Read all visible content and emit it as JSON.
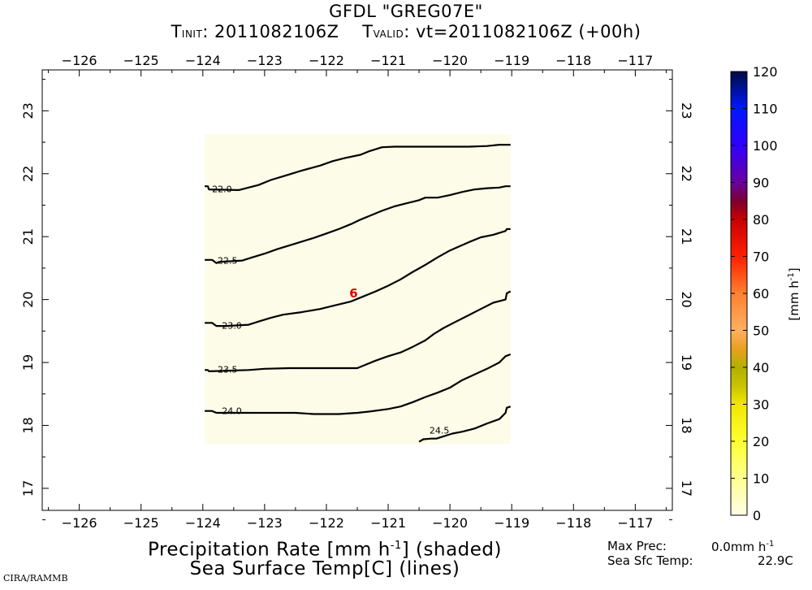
{
  "header": {
    "model": "GFDL",
    "storm": "\"GREG07E\"",
    "t_init_prefix": "T",
    "t_init_sub": "INIT",
    "t_init_value": ": 2011082106Z",
    "t_valid_prefix": "T",
    "t_valid_sub": "VALID",
    "t_valid_value": ": vt=2011082106Z (+00h)"
  },
  "footer": {
    "line1_a": "Precipitation Rate [mm h",
    "line1_sup": "-1",
    "line1_b": "] (shaded)",
    "line2": "Sea Surface Temp[C] (lines)",
    "credit": "CIRA/RAMMB"
  },
  "stats": {
    "max_prec_label": "Max Prec:",
    "max_prec_value": "0.0mm h",
    "max_prec_sup": "-1",
    "sst_label": "Sea Sfc Temp:",
    "sst_value": "22.9C"
  },
  "colorbar": {
    "unit_a": "[mm h",
    "unit_sup": "-1",
    "unit_b": "]",
    "ticks": [
      0,
      10,
      20,
      30,
      40,
      50,
      60,
      70,
      80,
      90,
      100,
      110,
      120
    ],
    "tick_labels": [
      "0",
      "10",
      "20",
      "30",
      "40",
      "50",
      "60",
      "70",
      "80",
      "90",
      "100",
      "110",
      "120"
    ],
    "colors": [
      {
        "v": 0,
        "c": "#fffde8"
      },
      {
        "v": 10,
        "c": "#ffff90"
      },
      {
        "v": 20,
        "c": "#ffff30"
      },
      {
        "v": 30,
        "c": "#f2e600"
      },
      {
        "v": 35,
        "c": "#c8c300"
      },
      {
        "v": 40,
        "c": "#b2b000"
      },
      {
        "v": 45,
        "c": "#e8a020"
      },
      {
        "v": 50,
        "c": "#ffb060"
      },
      {
        "v": 60,
        "c": "#ff8030"
      },
      {
        "v": 70,
        "c": "#ff2000"
      },
      {
        "v": 80,
        "c": "#c80000"
      },
      {
        "v": 85,
        "c": "#7a0030"
      },
      {
        "v": 90,
        "c": "#6a00a0"
      },
      {
        "v": 100,
        "c": "#3000ff"
      },
      {
        "v": 110,
        "c": "#0018ff"
      },
      {
        "v": 120,
        "c": "#000a40"
      }
    ]
  },
  "chart_data": {
    "type": "contour",
    "title": "GFDL \"GREG07E\"",
    "xlim": [
      -126.6,
      -116.4
    ],
    "ylim": [
      16.65,
      23.65
    ],
    "x_ticks": [
      -126,
      -125,
      -124,
      -123,
      -122,
      -121,
      -120,
      -119,
      -118,
      -117
    ],
    "x_tick_labels": [
      "−126",
      "−125",
      "−124",
      "−123",
      "−122",
      "−121",
      "−120",
      "−119",
      "−118",
      "−117"
    ],
    "y_ticks": [
      17,
      18,
      19,
      20,
      21,
      22,
      23
    ],
    "y_tick_labels": [
      "17",
      "18",
      "19",
      "20",
      "21",
      "22",
      "23"
    ],
    "xlabel": "Precipitation Rate [mm h-1] (shaded)",
    "ylabel": "Sea Surface Temp[C] (lines)",
    "shaded_domain": {
      "lon": [
        -123.97,
        -119.02
      ],
      "lat": [
        17.7,
        22.62
      ],
      "value_mm_h": 0.0,
      "color": "#fdfce8"
    },
    "storm_marker": {
      "lon": -121.56,
      "lat": 20.1,
      "symbol": "6",
      "color": "#e00000"
    },
    "contours": [
      {
        "level": 22.0,
        "label": "22.0",
        "label_at": [
          -123.69,
          21.76
        ],
        "points": [
          [
            -123.97,
            21.8
          ],
          [
            -123.92,
            21.8
          ],
          [
            -123.9,
            21.75
          ],
          [
            -123.42,
            21.74
          ],
          [
            -123.3,
            21.77
          ],
          [
            -123.1,
            21.82
          ],
          [
            -122.9,
            21.9
          ],
          [
            -122.7,
            21.96
          ],
          [
            -122.4,
            22.05
          ],
          [
            -122.1,
            22.13
          ],
          [
            -121.9,
            22.2
          ],
          [
            -121.7,
            22.25
          ],
          [
            -121.45,
            22.3
          ],
          [
            -121.3,
            22.36
          ],
          [
            -121.1,
            22.42
          ],
          [
            -120.9,
            22.43
          ],
          [
            -120.6,
            22.43
          ],
          [
            -120.3,
            22.43
          ],
          [
            -120.0,
            22.43
          ],
          [
            -119.7,
            22.43
          ],
          [
            -119.4,
            22.44
          ],
          [
            -119.2,
            22.46
          ],
          [
            -119.02,
            22.46
          ]
        ]
      },
      {
        "level": 22.5,
        "label": "22.5",
        "label_at": [
          -123.6,
          20.62
        ],
        "points": [
          [
            -123.97,
            20.63
          ],
          [
            -123.85,
            20.63
          ],
          [
            -123.78,
            20.58
          ],
          [
            -123.73,
            20.6
          ],
          [
            -123.36,
            20.62
          ],
          [
            -123.2,
            20.67
          ],
          [
            -123.0,
            20.73
          ],
          [
            -122.8,
            20.8
          ],
          [
            -122.5,
            20.89
          ],
          [
            -122.2,
            20.98
          ],
          [
            -122.0,
            21.05
          ],
          [
            -121.8,
            21.12
          ],
          [
            -121.6,
            21.2
          ],
          [
            -121.45,
            21.27
          ],
          [
            -121.3,
            21.33
          ],
          [
            -121.1,
            21.41
          ],
          [
            -120.9,
            21.48
          ],
          [
            -120.7,
            21.53
          ],
          [
            -120.5,
            21.58
          ],
          [
            -120.4,
            21.62
          ],
          [
            -120.2,
            21.62
          ],
          [
            -120.0,
            21.66
          ],
          [
            -119.8,
            21.71
          ],
          [
            -119.6,
            21.75
          ],
          [
            -119.4,
            21.77
          ],
          [
            -119.2,
            21.78
          ],
          [
            -119.1,
            21.8
          ],
          [
            -119.02,
            21.8
          ]
        ]
      },
      {
        "level": 23.0,
        "label": "23.0",
        "label_at": [
          -123.53,
          19.59
        ],
        "points": [
          [
            -123.97,
            19.63
          ],
          [
            -123.85,
            19.63
          ],
          [
            -123.78,
            19.58
          ],
          [
            -123.62,
            19.58
          ],
          [
            -123.26,
            19.6
          ],
          [
            -123.1,
            19.65
          ],
          [
            -122.9,
            19.71
          ],
          [
            -122.7,
            19.76
          ],
          [
            -122.4,
            19.8
          ],
          [
            -122.1,
            19.85
          ],
          [
            -121.9,
            19.9
          ],
          [
            -121.6,
            19.97
          ],
          [
            -121.4,
            20.05
          ],
          [
            -121.2,
            20.13
          ],
          [
            -121.0,
            20.22
          ],
          [
            -120.8,
            20.32
          ],
          [
            -120.6,
            20.44
          ],
          [
            -120.4,
            20.55
          ],
          [
            -120.2,
            20.67
          ],
          [
            -120.0,
            20.78
          ],
          [
            -119.7,
            20.91
          ],
          [
            -119.5,
            20.99
          ],
          [
            -119.3,
            21.03
          ],
          [
            -119.1,
            21.09
          ],
          [
            -119.08,
            21.12
          ],
          [
            -119.02,
            21.12
          ]
        ]
      },
      {
        "level": 23.5,
        "label": "23.5",
        "label_at": [
          -123.6,
          18.89
        ],
        "points": [
          [
            -123.97,
            18.88
          ],
          [
            -123.92,
            18.88
          ],
          [
            -123.9,
            18.86
          ],
          [
            -123.26,
            18.88
          ],
          [
            -123.0,
            18.9
          ],
          [
            -122.6,
            18.91
          ],
          [
            -122.2,
            18.91
          ],
          [
            -121.8,
            18.91
          ],
          [
            -121.5,
            18.91
          ],
          [
            -121.4,
            18.95
          ],
          [
            -121.2,
            19.03
          ],
          [
            -121.0,
            19.1
          ],
          [
            -120.8,
            19.16
          ],
          [
            -120.6,
            19.25
          ],
          [
            -120.4,
            19.35
          ],
          [
            -120.25,
            19.46
          ],
          [
            -120.1,
            19.55
          ],
          [
            -119.9,
            19.65
          ],
          [
            -119.7,
            19.75
          ],
          [
            -119.5,
            19.85
          ],
          [
            -119.3,
            19.95
          ],
          [
            -119.1,
            20.0
          ],
          [
            -119.08,
            20.1
          ],
          [
            -119.02,
            20.13
          ]
        ]
      },
      {
        "level": 24.0,
        "label": "24.0",
        "label_at": [
          -123.53,
          18.23
        ],
        "points": [
          [
            -123.97,
            18.23
          ],
          [
            -123.85,
            18.23
          ],
          [
            -123.78,
            18.2
          ],
          [
            -123.26,
            18.2
          ],
          [
            -123.0,
            18.2
          ],
          [
            -122.5,
            18.2
          ],
          [
            -122.2,
            18.18
          ],
          [
            -121.8,
            18.18
          ],
          [
            -121.5,
            18.2
          ],
          [
            -121.3,
            18.22
          ],
          [
            -121.0,
            18.26
          ],
          [
            -120.8,
            18.3
          ],
          [
            -120.6,
            18.37
          ],
          [
            -120.4,
            18.45
          ],
          [
            -120.2,
            18.52
          ],
          [
            -120.0,
            18.6
          ],
          [
            -119.8,
            18.72
          ],
          [
            -119.6,
            18.81
          ],
          [
            -119.4,
            18.9
          ],
          [
            -119.2,
            19.0
          ],
          [
            -119.1,
            19.1
          ],
          [
            -119.02,
            19.13
          ]
        ]
      },
      {
        "level": 24.5,
        "label": "24.5",
        "label_at": [
          -120.17,
          17.92
        ],
        "points": [
          [
            -120.5,
            17.74
          ],
          [
            -120.43,
            17.78
          ],
          [
            -120.3,
            17.79
          ],
          [
            -120.22,
            17.79
          ],
          [
            -119.96,
            17.87
          ],
          [
            -119.8,
            17.9
          ],
          [
            -119.6,
            17.95
          ],
          [
            -119.4,
            18.03
          ],
          [
            -119.2,
            18.1
          ],
          [
            -119.1,
            18.2
          ],
          [
            -119.08,
            18.28
          ],
          [
            -119.02,
            18.3
          ]
        ]
      }
    ]
  }
}
